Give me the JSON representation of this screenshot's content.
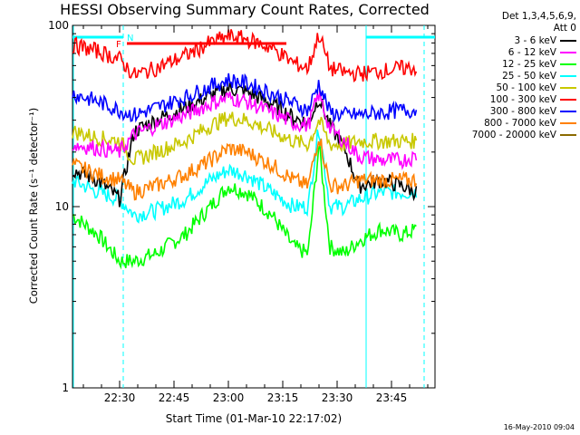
{
  "chart_data": {
    "type": "line",
    "title": "HESSI Observing Summary Count Rates, Corrected",
    "xlabel": "Start Time (01-Mar-10 22:17:02)",
    "ylabel": "Corrected Count Rate (s⁻¹ detector⁻¹)",
    "yscale": "log",
    "ylim": [
      1,
      100
    ],
    "y_ticks": [
      "1",
      "10",
      "100"
    ],
    "xlim": [
      "22:17",
      "23:57"
    ],
    "x_ticks": [
      "22:30",
      "22:45",
      "23:00",
      "23:15",
      "23:30",
      "23:45"
    ],
    "legend_header": [
      "Det 1,3,4,5,6,9,",
      "Att 0"
    ],
    "legend_position": "right, outside",
    "series": [
      {
        "name": "3 - 6 keV",
        "color": "#000000",
        "x": [
          "22:17",
          "22:24",
          "22:30",
          "22:34",
          "22:40",
          "22:48",
          "22:55",
          "23:00",
          "23:05",
          "23:12",
          "23:18",
          "23:22",
          "23:25",
          "23:28",
          "23:32",
          "23:36",
          "23:42",
          "23:48",
          "23:52"
        ],
        "y": [
          16,
          14,
          11,
          26,
          30,
          35,
          41,
          45,
          43,
          37,
          31,
          29,
          40,
          28,
          21,
          13,
          14,
          13,
          12
        ]
      },
      {
        "name": "6 - 12 keV",
        "color": "#ff00ff",
        "x": [
          "22:17",
          "22:24",
          "22:30",
          "22:34",
          "22:40",
          "22:48",
          "22:55",
          "23:00",
          "23:05",
          "23:12",
          "23:18",
          "23:22",
          "23:25",
          "23:28",
          "23:32",
          "23:36",
          "23:42",
          "23:48",
          "23:52"
        ],
        "y": [
          22,
          21,
          20,
          25,
          28,
          32,
          37,
          40,
          38,
          33,
          29,
          28,
          42,
          27,
          23,
          19,
          18,
          18,
          19
        ]
      },
      {
        "name": "12 - 25 keV",
        "color": "#00ff00",
        "x": [
          "22:17",
          "22:24",
          "22:30",
          "22:34",
          "22:40",
          "22:48",
          "22:55",
          "23:00",
          "23:05",
          "23:12",
          "23:18",
          "23:22",
          "23:25",
          "23:28",
          "23:32",
          "23:36",
          "23:42",
          "23:48",
          "23:52"
        ],
        "y": [
          9,
          7,
          5,
          5,
          5.5,
          7,
          10,
          13,
          12,
          9,
          6,
          5.5,
          22,
          6,
          5.5,
          6.5,
          7.5,
          7,
          7.5
        ]
      },
      {
        "name": "25 - 50 keV",
        "color": "#00ffff",
        "x": [
          "22:17",
          "22:24",
          "22:30",
          "22:34",
          "22:40",
          "22:48",
          "22:55",
          "23:00",
          "23:05",
          "23:12",
          "23:18",
          "23:22",
          "23:25",
          "23:28",
          "23:32",
          "23:36",
          "23:42",
          "23:48",
          "23:52"
        ],
        "y": [
          14,
          12,
          11,
          9,
          9.5,
          11,
          14,
          16,
          15,
          12,
          10,
          10,
          28,
          10,
          10,
          11,
          12,
          12,
          12
        ]
      },
      {
        "name": "50 - 100 keV",
        "color": "#c8c800",
        "x": [
          "22:17",
          "22:24",
          "22:30",
          "22:34",
          "22:40",
          "22:48",
          "22:55",
          "23:00",
          "23:05",
          "23:12",
          "23:18",
          "23:22",
          "23:25",
          "23:28",
          "23:32",
          "23:36",
          "23:42",
          "23:48",
          "23:52"
        ],
        "y": [
          26,
          24,
          23,
          18,
          20,
          23,
          28,
          31,
          30,
          26,
          23,
          22,
          30,
          22,
          22,
          23,
          23,
          23,
          23
        ]
      },
      {
        "name": "100 - 300 keV",
        "color": "#ff0000",
        "x": [
          "22:17",
          "22:24",
          "22:30",
          "22:34",
          "22:40",
          "22:48",
          "22:55",
          "23:00",
          "23:05",
          "23:12",
          "23:18",
          "23:22",
          "23:25",
          "23:28",
          "23:32",
          "23:36",
          "23:42",
          "23:48",
          "23:52"
        ],
        "y": [
          78,
          72,
          65,
          53,
          58,
          68,
          80,
          87,
          84,
          75,
          62,
          58,
          90,
          58,
          55,
          54,
          56,
          58,
          58
        ]
      },
      {
        "name": "300 - 800 keV",
        "color": "#0000ff",
        "x": [
          "22:17",
          "22:24",
          "22:30",
          "22:34",
          "22:40",
          "22:48",
          "22:55",
          "23:00",
          "23:05",
          "23:12",
          "23:18",
          "23:22",
          "23:25",
          "23:28",
          "23:32",
          "23:36",
          "23:42",
          "23:48",
          "23:52"
        ],
        "y": [
          42,
          38,
          34,
          32,
          35,
          40,
          46,
          50,
          48,
          42,
          37,
          34,
          48,
          33,
          32,
          32,
          33,
          34,
          34
        ]
      },
      {
        "name": "800 - 7000 keV",
        "color": "#ff8000",
        "x": [
          "22:17",
          "22:24",
          "22:30",
          "22:34",
          "22:40",
          "22:48",
          "22:55",
          "23:00",
          "23:05",
          "23:12",
          "23:18",
          "23:22",
          "23:25",
          "23:28",
          "23:32",
          "23:36",
          "23:42",
          "23:48",
          "23:52"
        ],
        "y": [
          17,
          15,
          14,
          12,
          13,
          15,
          18,
          21,
          20,
          17,
          14,
          13,
          25,
          13,
          13,
          14,
          14,
          14,
          14
        ]
      },
      {
        "name": "7000 - 20000 keV",
        "color": "#8b6a00",
        "x": [],
        "y": []
      }
    ],
    "annotations": [
      {
        "text": "N",
        "color": "#00ffff"
      },
      {
        "text": "F",
        "color": "#ff0000"
      }
    ],
    "night_intervals": [
      [
        "22:17",
        "22:31"
      ],
      [
        "23:38",
        "23:57"
      ]
    ],
    "night_boundaries": [
      "22:31",
      "23:38",
      "23:54"
    ],
    "flare_interval": [
      "22:32",
      "23:16"
    ]
  },
  "footer": "16-May-2010 09:04"
}
